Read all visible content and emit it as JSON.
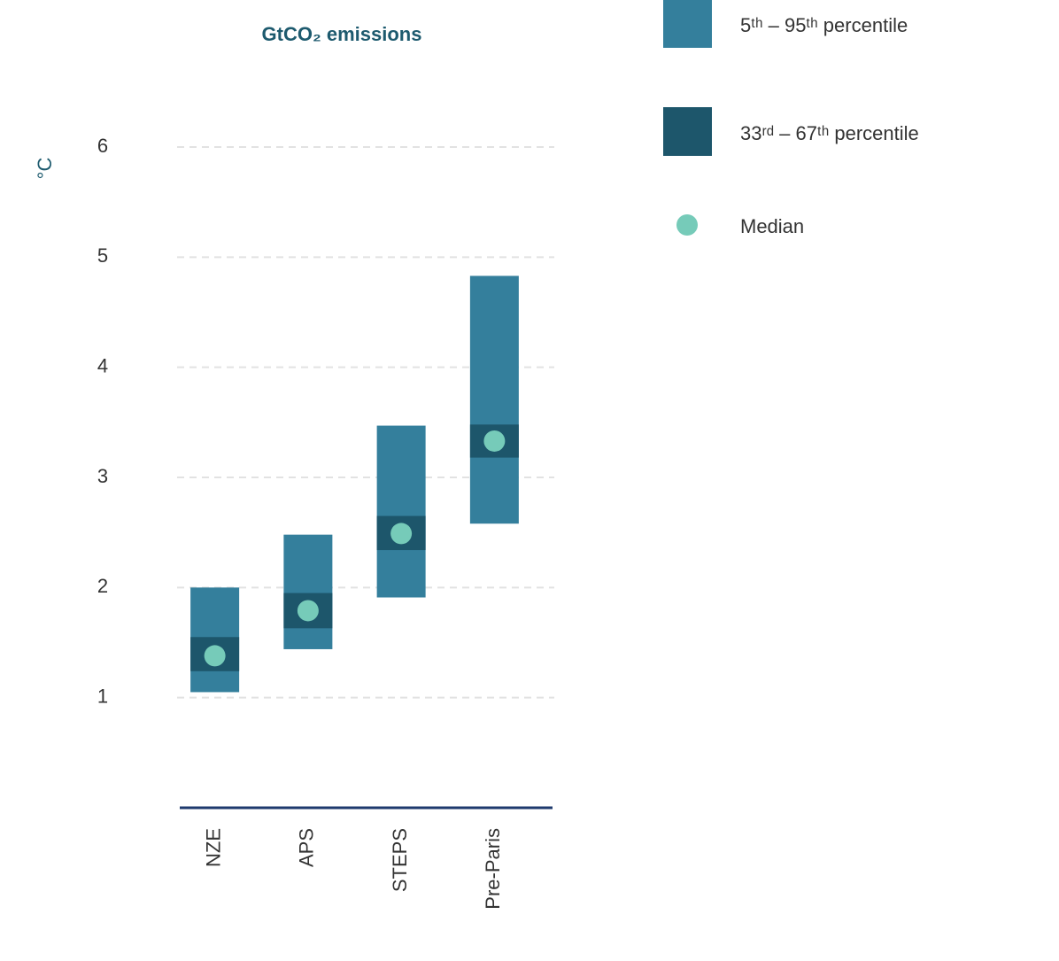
{
  "chart_data": {
    "type": "range-bar",
    "title": "GtCO₂ emissions",
    "y_label": "°C",
    "categories": [
      "NZE",
      "APS",
      "STEPS",
      "Pre-Paris"
    ],
    "ranges": [
      {
        "name": "5ᵗʰ – 95ᵗʰ percentile",
        "color": "#347f9c",
        "low": [
          1.05,
          1.44,
          1.91,
          2.58
        ],
        "high": [
          2.0,
          2.48,
          3.47,
          4.83
        ]
      },
      {
        "name": "33ʳᵈ – 67ᵗʰ percentile",
        "color": "#1d566b",
        "low": [
          1.24,
          1.63,
          2.34,
          3.18
        ],
        "high": [
          1.55,
          1.95,
          2.65,
          3.48
        ]
      }
    ],
    "median": {
      "name": "Median",
      "color": "#76cbb9",
      "values": [
        1.38,
        1.79,
        2.49,
        3.33
      ]
    },
    "ylim": [
      0,
      6
    ],
    "yticks": [
      1,
      2,
      3,
      4,
      5,
      6
    ],
    "grid": true
  }
}
